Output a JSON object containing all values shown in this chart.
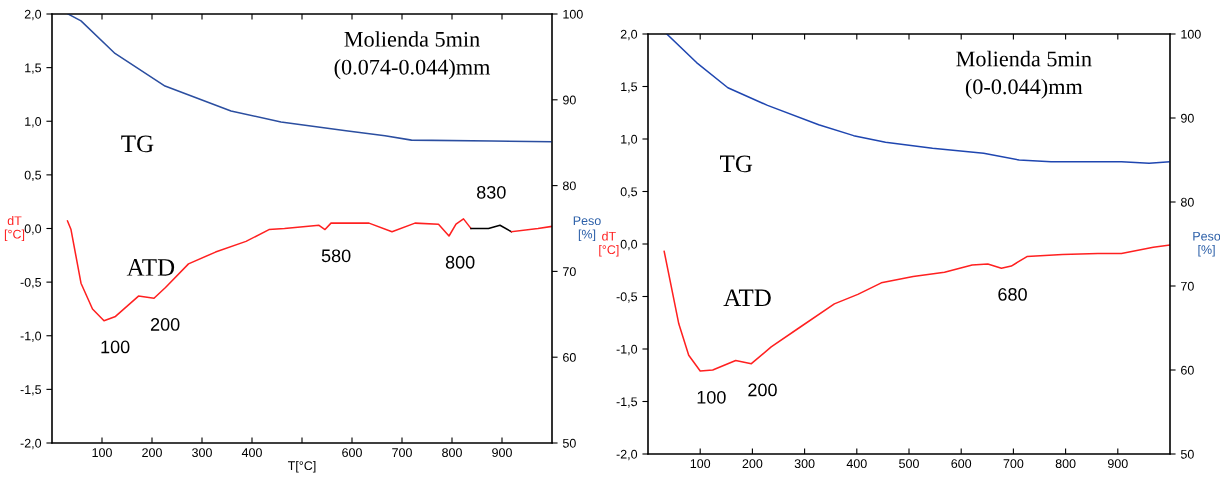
{
  "chart_data": [
    {
      "type": "line",
      "title": "Molienda 5min\n(0.074-0.044)mm",
      "xlabel": "T[°C]",
      "ylabel": "dT\n[°C]",
      "y2label": "Peso\n[%]",
      "xlim": [
        0,
        1000
      ],
      "xticks": [
        100,
        200,
        300,
        400,
        {
          "value": 500,
          "label": null
        },
        600,
        700,
        800,
        900
      ],
      "ylim": [
        -2,
        2
      ],
      "yticks": [
        {
          "value": -2,
          "label": "-2,0"
        },
        {
          "value": -1.5,
          "label": "-1,5"
        },
        {
          "value": -1,
          "label": "-1,0"
        },
        {
          "value": -0.5,
          "label": "-0,5"
        },
        {
          "value": 0,
          "label": "0,0"
        },
        {
          "value": 0.5,
          "label": "0,5"
        },
        {
          "value": 1,
          "label": "1,0"
        },
        {
          "value": 1.5,
          "label": "1,5"
        },
        {
          "value": 2,
          "label": "2,0"
        }
      ],
      "y2lim": [
        50,
        100
      ],
      "y2ticks": [
        50,
        60,
        70,
        80,
        90,
        100
      ],
      "grid": false,
      "legend": false,
      "series": [
        {
          "name": "TG",
          "axis": "y2",
          "color": "#2b4ea0",
          "x": [
            32,
            58,
            126,
            226,
            358,
            458,
            588,
            666,
            719,
            880,
            1000
          ],
          "values": [
            100,
            99.2,
            95.4,
            91.6,
            88.7,
            87.4,
            86.4,
            85.8,
            85.3,
            85.2,
            85.1
          ]
        },
        {
          "name": "ATD",
          "color": "#ff2020",
          "x": [
            31,
            38,
            58,
            81,
            104,
            127,
            173,
            204,
            227,
            273,
            327,
            388,
            434,
            465,
            534,
            546,
            558,
            634,
            680,
            726,
            773,
            794,
            808,
            823,
            838
          ],
          "values": [
            0.07,
            -0.01,
            -0.51,
            -0.75,
            -0.86,
            -0.82,
            -0.63,
            -0.65,
            -0.55,
            -0.33,
            -0.22,
            -0.12,
            -0.01,
            0.0,
            0.03,
            -0.01,
            0.05,
            0.05,
            -0.03,
            0.05,
            0.04,
            -0.07,
            0.04,
            0.09,
            0.0
          ]
        },
        {
          "color": "#000000",
          "x": [
            838,
            873,
            896,
            919
          ],
          "values": [
            0.0,
            0.0,
            0.03,
            -0.03
          ]
        },
        {
          "color": "#ff2020",
          "x": [
            919,
            972,
            1000
          ],
          "values": [
            -0.03,
            0.0,
            0.02
          ]
        }
      ],
      "annotations": [
        {
          "text": "100",
          "x": 104,
          "y": -0.86
        },
        {
          "text": "200",
          "x": 204,
          "y": -0.65
        },
        {
          "text": "580",
          "x": 546,
          "y": -0.01
        },
        {
          "text": "800",
          "x": 794,
          "y": -0.07
        },
        {
          "text": "830",
          "x": 823,
          "y": 0.09
        }
      ]
    },
    {
      "type": "line",
      "title": "Molienda 5min\n(0-0.044)mm",
      "ylabel": "dT\n[°C]",
      "y2label": "Peso\n[%]",
      "xlim": [
        0,
        1000
      ],
      "xticks": [
        100,
        200,
        300,
        400,
        500,
        600,
        700,
        800,
        900
      ],
      "ylim": [
        -2,
        2
      ],
      "yticks": [
        {
          "value": -2,
          "label": "-2,0"
        },
        {
          "value": -1.5,
          "label": "-1,5"
        },
        {
          "value": -1,
          "label": "-1,0"
        },
        {
          "value": -0.5,
          "label": "-0,5"
        },
        {
          "value": 0,
          "label": "0,0"
        },
        {
          "value": 0.5,
          "label": "0,5"
        },
        {
          "value": 1,
          "label": "1,0"
        },
        {
          "value": 1.5,
          "label": "1,5"
        },
        {
          "value": 2,
          "label": "2,0"
        }
      ],
      "y2lim": [
        50,
        100
      ],
      "y2ticks": [
        50,
        60,
        70,
        80,
        90,
        100
      ],
      "grid": false,
      "legend": false,
      "series": [
        {
          "name": "TG",
          "axis": "y2",
          "color": "#1f46b0",
          "x": [
            36,
            93,
            153,
            229,
            327,
            394,
            455,
            545,
            643,
            711,
            772,
            907,
            960,
            1000
          ],
          "values": [
            100,
            96.6,
            93.6,
            91.5,
            89.2,
            87.9,
            87.1,
            86.4,
            85.8,
            85.0,
            84.8,
            84.8,
            84.6,
            84.8
          ]
        },
        {
          "name": "ATD",
          "color": "#ff2020",
          "x": [
            31,
            59,
            78,
            100,
            124,
            168,
            198,
            236,
            289,
            357,
            402,
            447,
            508,
            568,
            621,
            651,
            677,
            696,
            726,
            794,
            862,
            907,
            968,
            1000
          ],
          "values": [
            -0.07,
            -0.76,
            -1.06,
            -1.21,
            -1.2,
            -1.11,
            -1.14,
            -0.98,
            -0.8,
            -0.57,
            -0.48,
            -0.37,
            -0.31,
            -0.27,
            -0.2,
            -0.19,
            -0.23,
            -0.21,
            -0.12,
            -0.1,
            -0.09,
            -0.09,
            -0.03,
            -0.01
          ]
        }
      ],
      "annotations": [
        {
          "text": "100",
          "x": 100,
          "y": -1.21
        },
        {
          "text": "200",
          "x": 198,
          "y": -1.14
        },
        {
          "text": "680",
          "x": 677,
          "y": -0.23
        }
      ]
    }
  ]
}
